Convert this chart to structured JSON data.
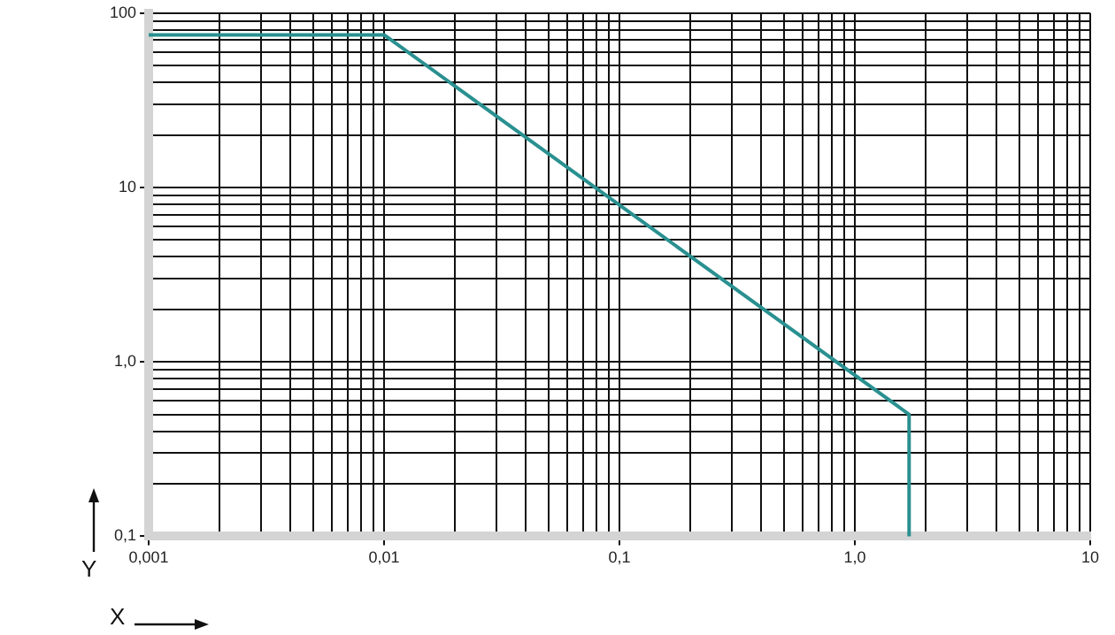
{
  "chart_data": {
    "type": "line",
    "xlabel": "X",
    "ylabel": "Y",
    "x": [
      0.001,
      0.01,
      1.7,
      1.7
    ],
    "series": [
      {
        "color": "#2a9090",
        "values": [
          75,
          75,
          0.5,
          0.1
        ]
      }
    ],
    "log": "xy",
    "xlim": [
      0.001,
      10
    ],
    "ylim": [
      0.1,
      100
    ],
    "xticks": [
      {
        "value": 0.001,
        "label": "0,001"
      },
      {
        "value": 0.002,
        "label": null
      },
      {
        "value": 0.003,
        "label": null
      },
      {
        "value": 0.004,
        "label": null
      },
      {
        "value": 0.005,
        "label": null
      },
      {
        "value": 0.006,
        "label": null
      },
      {
        "value": 0.007,
        "label": null
      },
      {
        "value": 0.008,
        "label": null
      },
      {
        "value": 0.009,
        "label": null
      },
      {
        "value": 0.01,
        "label": "0,01"
      },
      {
        "value": 0.02,
        "label": null
      },
      {
        "value": 0.03,
        "label": null
      },
      {
        "value": 0.04,
        "label": null
      },
      {
        "value": 0.05,
        "label": null
      },
      {
        "value": 0.06,
        "label": null
      },
      {
        "value": 0.07,
        "label": null
      },
      {
        "value": 0.08,
        "label": null
      },
      {
        "value": 0.09,
        "label": null
      },
      {
        "value": 0.1,
        "label": "0,1"
      },
      {
        "value": 0.2,
        "label": null
      },
      {
        "value": 0.3,
        "label": null
      },
      {
        "value": 0.4,
        "label": null
      },
      {
        "value": 0.5,
        "label": null
      },
      {
        "value": 0.6,
        "label": null
      },
      {
        "value": 0.7,
        "label": null
      },
      {
        "value": 0.8,
        "label": null
      },
      {
        "value": 0.9,
        "label": null
      },
      {
        "value": 1,
        "label": "1,0"
      },
      {
        "value": 2,
        "label": null
      },
      {
        "value": 3,
        "label": null
      },
      {
        "value": 4,
        "label": null
      },
      {
        "value": 5,
        "label": null
      },
      {
        "value": 6,
        "label": null
      },
      {
        "value": 7,
        "label": null
      },
      {
        "value": 8,
        "label": null
      },
      {
        "value": 9,
        "label": null
      },
      10
    ],
    "yticks": [
      {
        "value": 0.1,
        "label": "0,1"
      },
      {
        "value": 0.2,
        "label": null
      },
      {
        "value": 0.3,
        "label": null
      },
      {
        "value": 0.4,
        "label": null
      },
      {
        "value": 0.5,
        "label": null
      },
      {
        "value": 0.6,
        "label": null
      },
      {
        "value": 0.7,
        "label": null
      },
      {
        "value": 0.8,
        "label": null
      },
      {
        "value": 0.9,
        "label": null
      },
      {
        "value": 1,
        "label": "1,0"
      },
      {
        "value": 2,
        "label": null
      },
      {
        "value": 3,
        "label": null
      },
      {
        "value": 4,
        "label": null
      },
      {
        "value": 5,
        "label": null
      },
      {
        "value": 6,
        "label": null
      },
      {
        "value": 7,
        "label": null
      },
      {
        "value": 8,
        "label": null
      },
      {
        "value": 9,
        "label": null
      },
      10,
      {
        "value": 20,
        "label": null
      },
      {
        "value": 30,
        "label": null
      },
      {
        "value": 40,
        "label": null
      },
      {
        "value": 50,
        "label": null
      },
      {
        "value": 60,
        "label": null
      },
      {
        "value": 70,
        "label": null
      },
      {
        "value": 80,
        "label": null
      },
      {
        "value": 90,
        "label": null
      },
      100
    ],
    "grid": true,
    "legend": false,
    "marker": "none",
    "line_style": "solid"
  }
}
